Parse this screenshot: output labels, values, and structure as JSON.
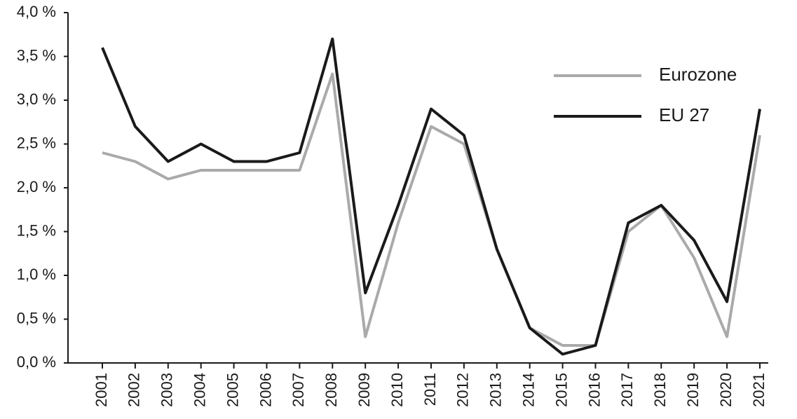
{
  "chart_data": {
    "type": "line",
    "categories": [
      "2001",
      "2002",
      "2003",
      "2004",
      "2005",
      "2006",
      "2007",
      "2008",
      "2009",
      "2010",
      "2011",
      "2012",
      "2013",
      "2014",
      "2015",
      "2016",
      "2017",
      "2018",
      "2019",
      "2020",
      "2021"
    ],
    "series": [
      {
        "name": "Eurozone",
        "color": "#aaaaaa",
        "values": [
          2.4,
          2.3,
          2.1,
          2.2,
          2.2,
          2.2,
          2.2,
          3.3,
          0.3,
          1.6,
          2.7,
          2.5,
          1.3,
          0.4,
          0.2,
          0.2,
          1.5,
          1.8,
          1.2,
          0.3,
          2.6
        ]
      },
      {
        "name": "EU 27",
        "color": "#1a1a1a",
        "values": [
          3.6,
          2.7,
          2.3,
          2.5,
          2.3,
          2.3,
          2.4,
          3.7,
          0.8,
          1.8,
          2.9,
          2.6,
          1.3,
          0.4,
          0.1,
          0.2,
          1.6,
          1.8,
          1.4,
          0.7,
          2.9
        ]
      }
    ],
    "ylim": [
      0,
      4
    ],
    "yticks": [
      {
        "value": 0,
        "label": "0,0 %"
      },
      {
        "value": 0.5,
        "label": "0,5 %"
      },
      {
        "value": 1,
        "label": "1,0 %"
      },
      {
        "value": 1.5,
        "label": "1,5 %"
      },
      {
        "value": 2,
        "label": "2,0 %"
      },
      {
        "value": 2.5,
        "label": "2,5 %"
      },
      {
        "value": 3,
        "label": "3,0 %"
      },
      {
        "value": 3.5,
        "label": "3,5 %"
      },
      {
        "value": 4,
        "label": "4,0 %"
      }
    ],
    "grid": false,
    "legend": "upper right"
  }
}
